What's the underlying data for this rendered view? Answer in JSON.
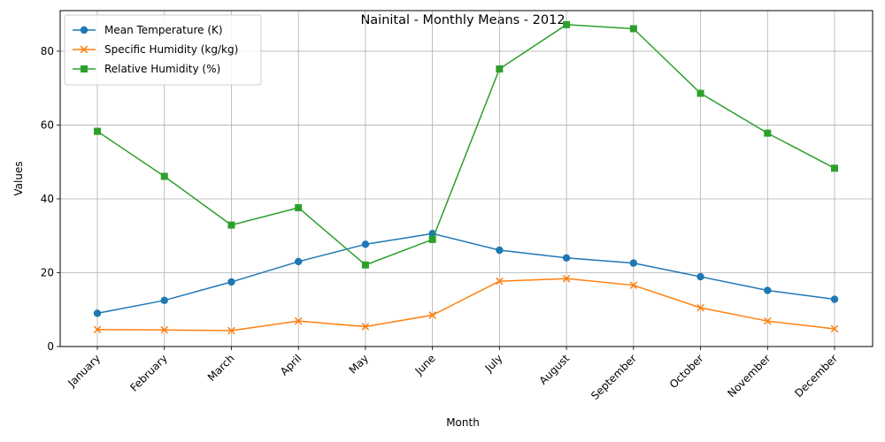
{
  "chart_data": {
    "type": "line",
    "title": "Nainital - Monthly Means - 2012",
    "xlabel": "Month",
    "ylabel": "Values",
    "categories": [
      "January",
      "February",
      "March",
      "April",
      "May",
      "June",
      "July",
      "August",
      "September",
      "October",
      "November",
      "December"
    ],
    "ylim": [
      0,
      91
    ],
    "yticks": [
      0,
      20,
      40,
      60,
      80
    ],
    "grid": true,
    "legend_position": "top-left",
    "series": [
      {
        "name": "Mean Temperature (K)",
        "color": "#1f77b4",
        "marker": "circle",
        "values": [
          9.0,
          12.5,
          17.5,
          23.0,
          27.7,
          30.6,
          26.1,
          24.0,
          22.6,
          18.9,
          15.2,
          12.8
        ]
      },
      {
        "name": "Specific Humidity (kg/kg)",
        "color": "#ff7f0e",
        "marker": "x",
        "values": [
          4.6,
          4.5,
          4.3,
          6.9,
          5.4,
          8.5,
          17.7,
          18.4,
          16.6,
          10.5,
          6.9,
          4.8
        ]
      },
      {
        "name": "Relative Humidity (%)",
        "color": "#2ca02c",
        "marker": "square",
        "values": [
          58.3,
          46.1,
          32.9,
          37.6,
          22.1,
          29.0,
          75.2,
          87.2,
          86.1,
          68.6,
          57.8,
          48.3
        ]
      }
    ]
  }
}
